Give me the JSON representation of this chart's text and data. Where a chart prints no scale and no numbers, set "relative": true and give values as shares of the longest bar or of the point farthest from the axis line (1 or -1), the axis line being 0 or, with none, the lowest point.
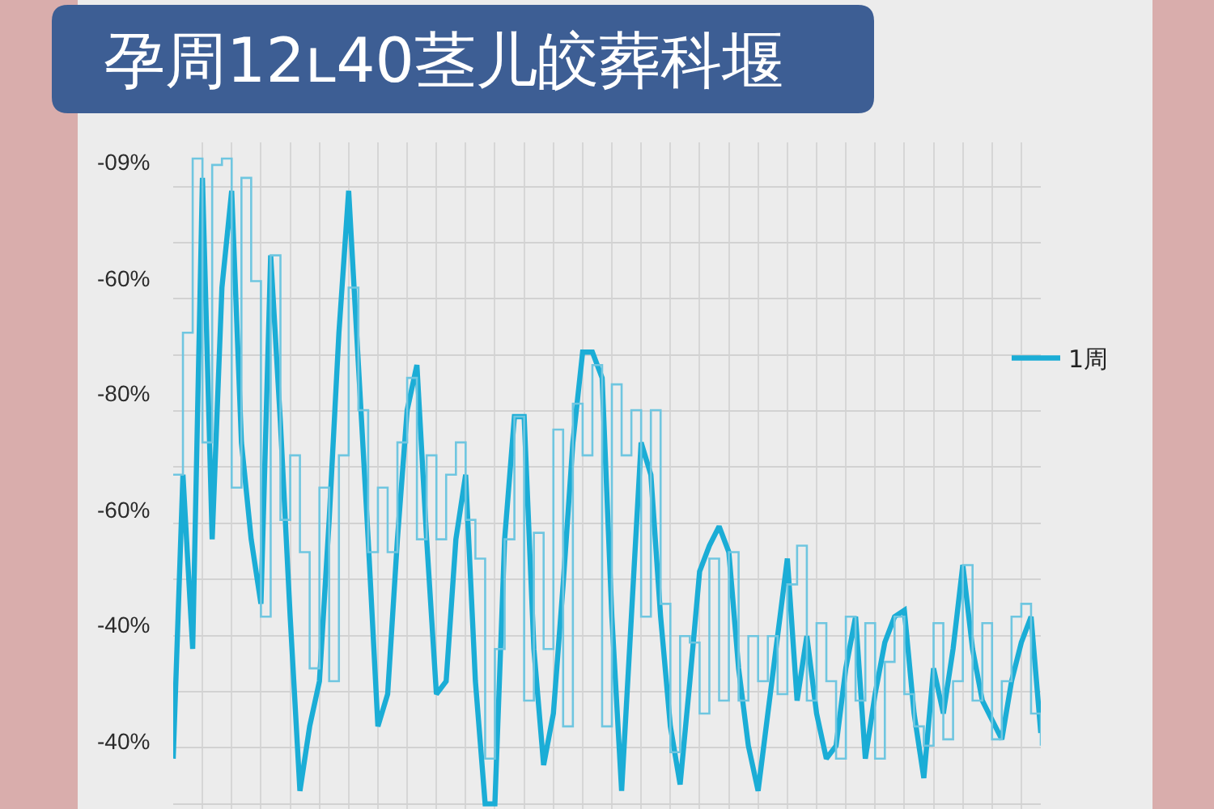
{
  "chart_data": {
    "type": "line",
    "title": "孕周12ʟ40茎儿皎葬科堰",
    "categories": [
      null,
      null,
      null,
      null,
      null,
      null,
      null,
      null,
      null,
      null,
      null,
      null,
      null,
      null,
      null,
      null,
      null,
      null,
      null,
      null,
      null,
      null,
      null,
      null,
      null,
      null,
      null,
      null,
      null,
      null,
      null,
      null,
      null,
      null,
      null,
      null,
      null,
      null,
      null,
      null,
      null,
      null,
      null,
      null,
      null,
      null,
      null,
      null,
      null,
      null,
      null,
      null,
      null,
      null,
      null,
      null,
      null,
      null,
      null,
      null,
      null,
      null,
      null,
      null,
      null,
      null,
      null,
      null,
      null,
      null,
      null,
      null,
      null,
      null,
      null,
      null,
      null,
      null,
      null,
      null,
      null,
      null,
      null,
      null,
      null,
      null,
      null,
      null,
      null,
      null
    ],
    "relative": true,
    "series": [
      {
        "name": "1周",
        "color": "#1badd6",
        "values": [
          0.07,
          0.51,
          0.24,
          0.97,
          0.41,
          0.8,
          0.95,
          0.56,
          0.41,
          0.31,
          0.85,
          0.59,
          0.29,
          0.02,
          0.12,
          0.19,
          0.44,
          0.73,
          0.95,
          0.68,
          0.41,
          0.12,
          0.17,
          0.41,
          0.61,
          0.68,
          0.41,
          0.17,
          0.19,
          0.41,
          0.51,
          0.19,
          0,
          0,
          0.41,
          0.6,
          0.6,
          0.24,
          0.06,
          0.14,
          0.34,
          0.56,
          0.7,
          0.7,
          0.66,
          0.29,
          0.02,
          0.29,
          0.56,
          0.51,
          0.29,
          0.12,
          0.03,
          0.19,
          0.36,
          0.4,
          0.43,
          0.39,
          0.21,
          0.09,
          0.02,
          0.14,
          0.26,
          0.38,
          0.16,
          0.26,
          0.14,
          0.07,
          0.09,
          0.21,
          0.29,
          0.07,
          0.17,
          0.25,
          0.29,
          0.3,
          0.14,
          0.04,
          0.21,
          0.14,
          0.24,
          0.37,
          0.24,
          0.16,
          0.13,
          0.1,
          0.19,
          0.25,
          0.29,
          0.11
        ]
      },
      {
        "type": "step",
        "color": "#6fc6e0",
        "values": [
          0.51,
          0.73,
          1.0,
          0.56,
          0.99,
          1.0,
          0.49,
          0.97,
          0.81,
          0.29,
          0.85,
          0.44,
          0.54,
          0.39,
          0.21,
          0.49,
          0.19,
          0.54,
          0.8,
          0.61,
          0.39,
          0.49,
          0.39,
          0.56,
          0.66,
          0.41,
          0.54,
          0.41,
          0.51,
          0.56,
          0.44,
          0.38,
          0.07,
          0.24,
          0.41,
          0.6,
          0.16,
          0.42,
          0.24,
          0.58,
          0.12,
          0.62,
          0.54,
          0.68,
          0.12,
          0.65,
          0.54,
          0.61,
          0.29,
          0.61,
          0.31,
          0.08,
          0.26,
          0.25,
          0.14,
          0.38,
          0.16,
          0.39,
          0.16,
          0.26,
          0.19,
          0.26,
          0.17,
          0.34,
          0.4,
          0.16,
          0.28,
          0.19,
          0.07,
          0.29,
          0.16,
          0.28,
          0.07,
          0.22,
          0.29,
          0.17,
          0.12,
          0.09,
          0.28,
          0.1,
          0.19,
          0.37,
          0.16,
          0.28,
          0.1,
          0.19,
          0.29,
          0.31,
          0.14,
          0.09
        ]
      }
    ],
    "annotations": [
      "-09%",
      "-60%",
      "-80%",
      "-60%",
      "-40%",
      "-40%"
    ],
    "grid": true,
    "legend": "top right"
  }
}
